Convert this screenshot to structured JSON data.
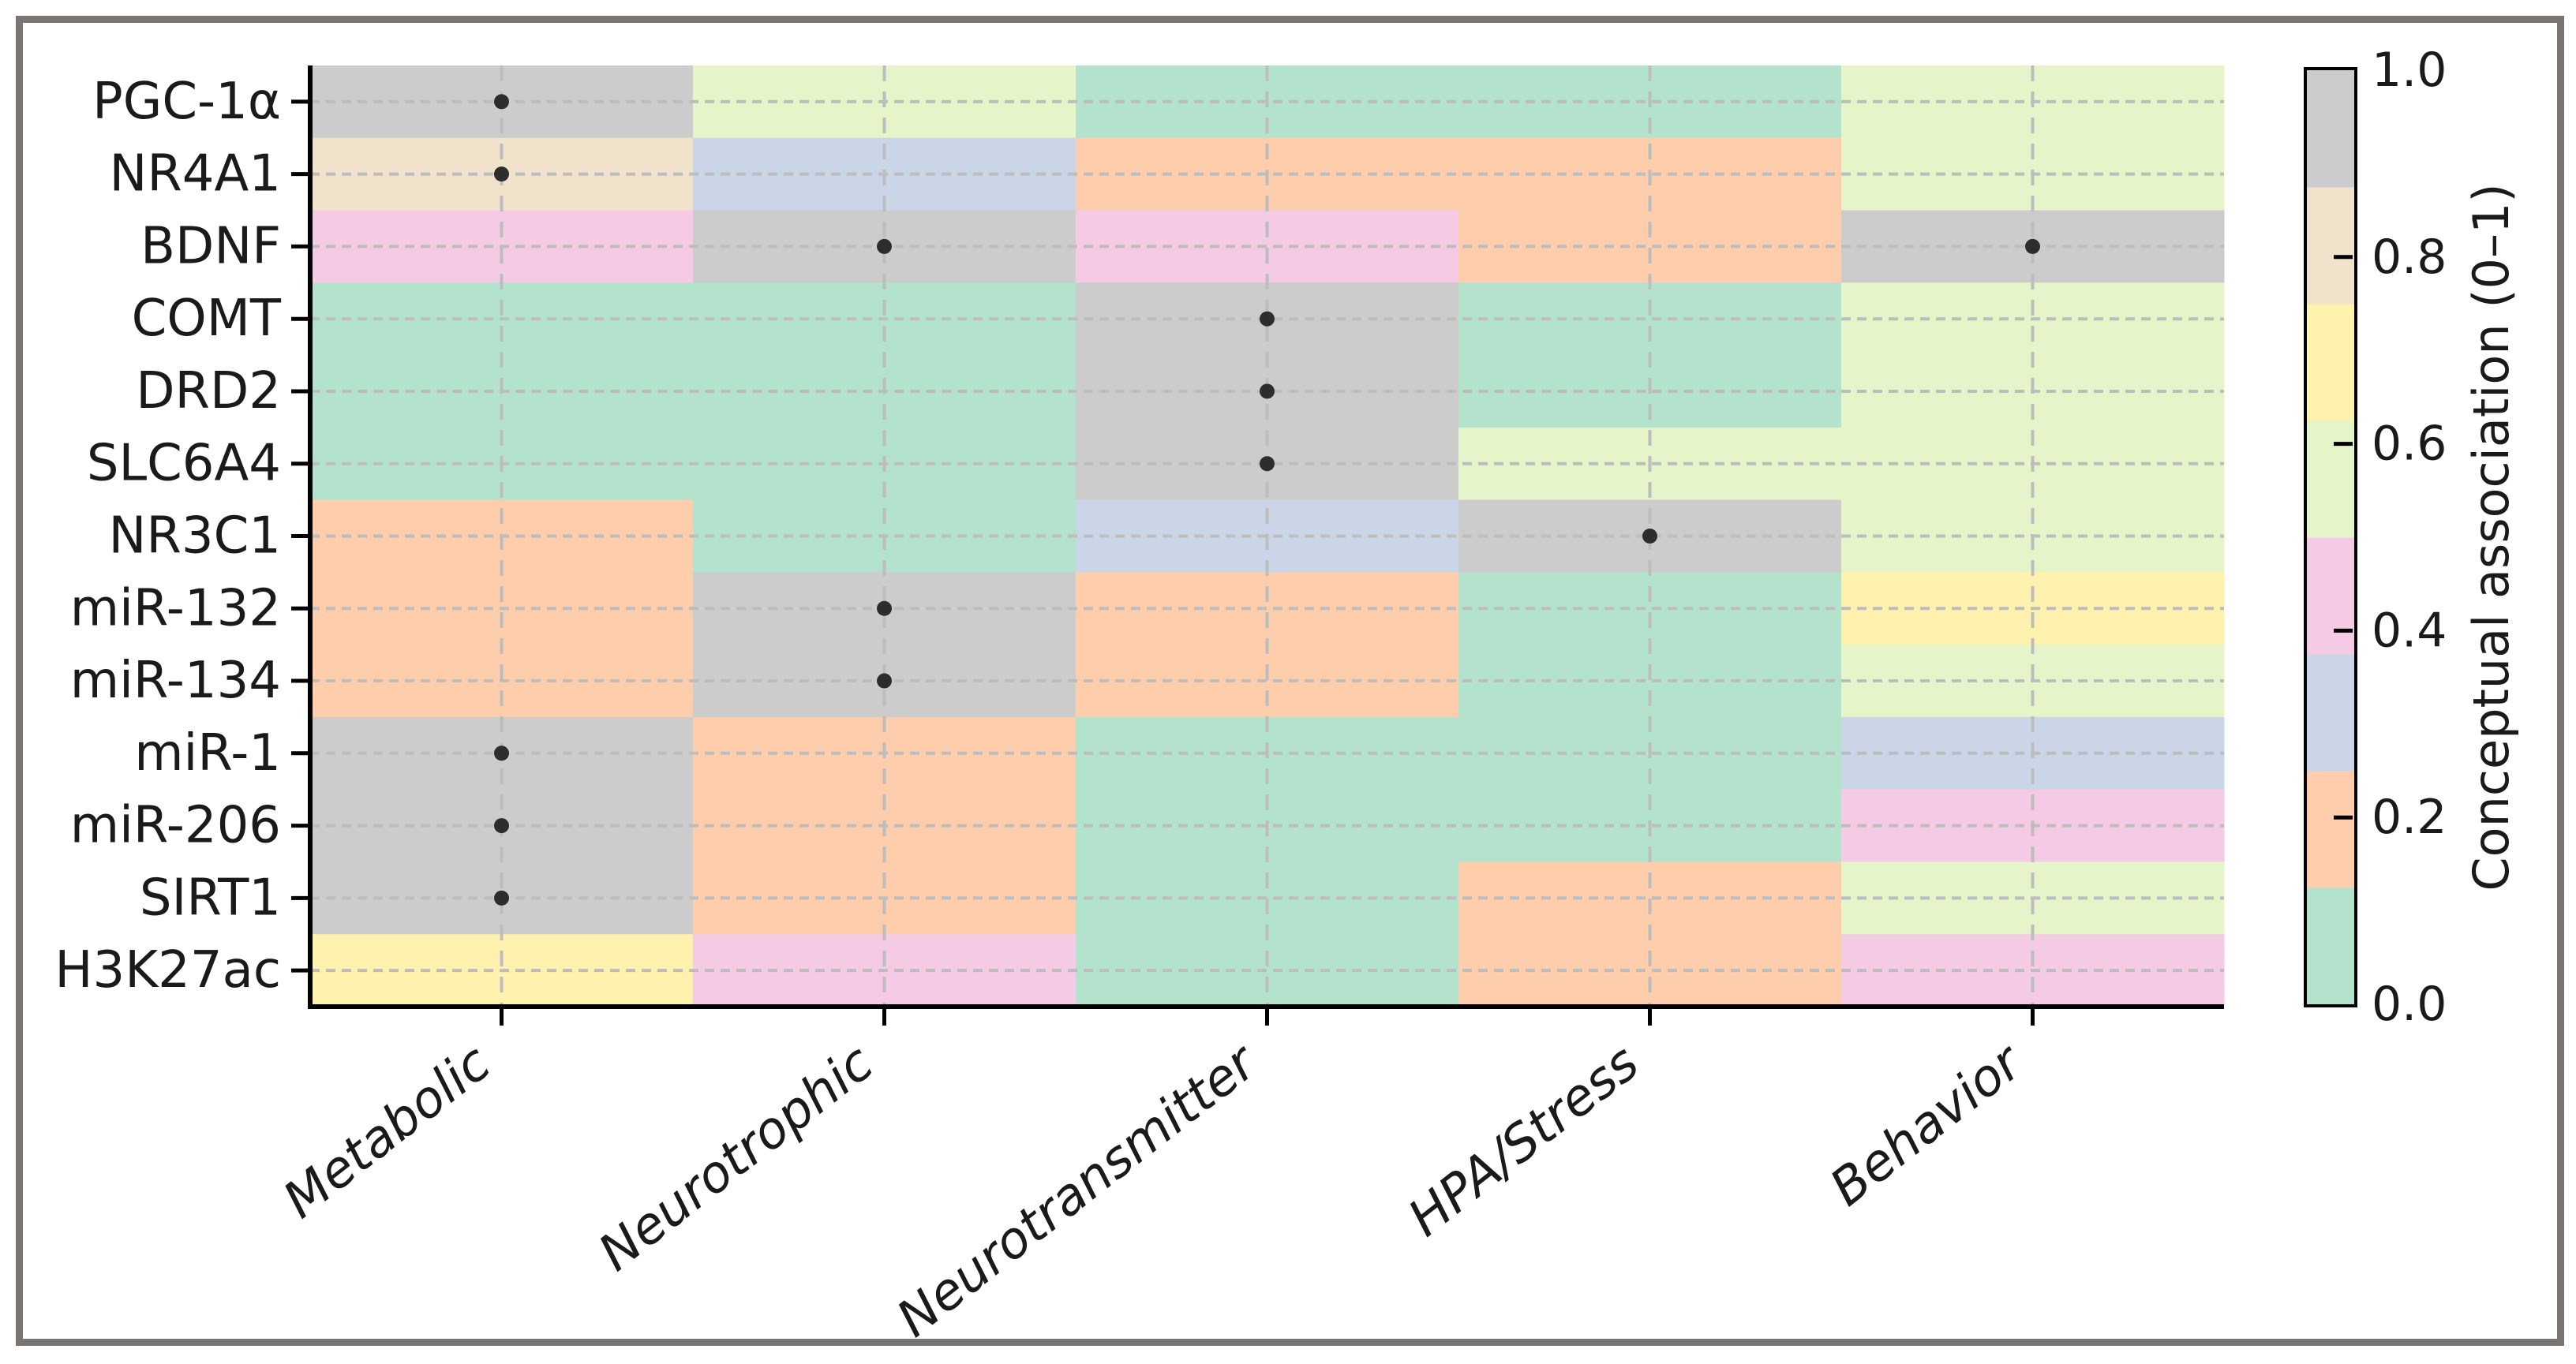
{
  "figure": {
    "background": "#ffffff",
    "frame_color": "#7a7573",
    "axis_color": "#000000",
    "grid_color": "#bdbdbd",
    "text_color": "#1a1a1a"
  },
  "chart_data": {
    "type": "heatmap",
    "title": "",
    "xlabel": "",
    "ylabel": "",
    "rows": [
      "PGC-1α",
      "NR4A1",
      "BDNF",
      "COMT",
      "DRD2",
      "SLC6A4",
      "NR3C1",
      "miR-132",
      "miR-134",
      "miR-1",
      "miR-206",
      "SIRT1",
      "H3K27ac"
    ],
    "columns": [
      "Metabolic",
      "Neurotrophic",
      "Neurotransmitter",
      "HPA/Stress",
      "Behavior"
    ],
    "values": [
      [
        0.95,
        0.55,
        0.05,
        0.05,
        0.55
      ],
      [
        0.8,
        0.3,
        0.2,
        0.2,
        0.55
      ],
      [
        0.45,
        0.95,
        0.45,
        0.2,
        0.95
      ],
      [
        0.05,
        0.05,
        0.95,
        0.05,
        0.55
      ],
      [
        0.05,
        0.05,
        0.95,
        0.05,
        0.55
      ],
      [
        0.05,
        0.05,
        0.95,
        0.55,
        0.55
      ],
      [
        0.2,
        0.05,
        0.3,
        0.95,
        0.55
      ],
      [
        0.2,
        0.95,
        0.2,
        0.05,
        0.7
      ],
      [
        0.2,
        0.95,
        0.2,
        0.05,
        0.55
      ],
      [
        0.95,
        0.2,
        0.05,
        0.05,
        0.3
      ],
      [
        0.95,
        0.2,
        0.05,
        0.05,
        0.45
      ],
      [
        0.95,
        0.2,
        0.05,
        0.2,
        0.55
      ],
      [
        0.7,
        0.45,
        0.05,
        0.2,
        0.45
      ]
    ],
    "value_range": [
      0,
      1
    ],
    "colormap": {
      "name": "Pastel2",
      "n_bins": 8,
      "bin_colors": [
        "#b3e2cd",
        "#fdcdac",
        "#cbd5e8",
        "#f4cae4",
        "#e6f5c9",
        "#fff2ae",
        "#f1e2cc",
        "#cccccc"
      ]
    },
    "marker": {
      "shape": "dot",
      "color": "#2d2d2d",
      "threshold": 0.8,
      "cells": [
        [
          "PGC-1α",
          "Metabolic"
        ],
        [
          "NR4A1",
          "Metabolic"
        ],
        [
          "BDNF",
          "Neurotrophic"
        ],
        [
          "BDNF",
          "Behavior"
        ],
        [
          "COMT",
          "Neurotransmitter"
        ],
        [
          "DRD2",
          "Neurotransmitter"
        ],
        [
          "SLC6A4",
          "Neurotransmitter"
        ],
        [
          "NR3C1",
          "HPA/Stress"
        ],
        [
          "miR-132",
          "Neurotrophic"
        ],
        [
          "miR-134",
          "Neurotrophic"
        ],
        [
          "miR-1",
          "Metabolic"
        ],
        [
          "miR-206",
          "Metabolic"
        ],
        [
          "SIRT1",
          "Metabolic"
        ]
      ]
    },
    "grid": {
      "style": "dashed",
      "on": true
    },
    "colorbar": {
      "label": "Conceptual association (0–1)",
      "position": "right",
      "ticks": [
        {
          "label": "0.0",
          "value": 0.0
        },
        {
          "label": "0.2",
          "value": 0.2
        },
        {
          "label": "0.4",
          "value": 0.4
        },
        {
          "label": "0.6",
          "value": 0.6
        },
        {
          "label": "0.8",
          "value": 0.8
        },
        {
          "label": "1.0",
          "value": 1.0
        }
      ]
    }
  }
}
